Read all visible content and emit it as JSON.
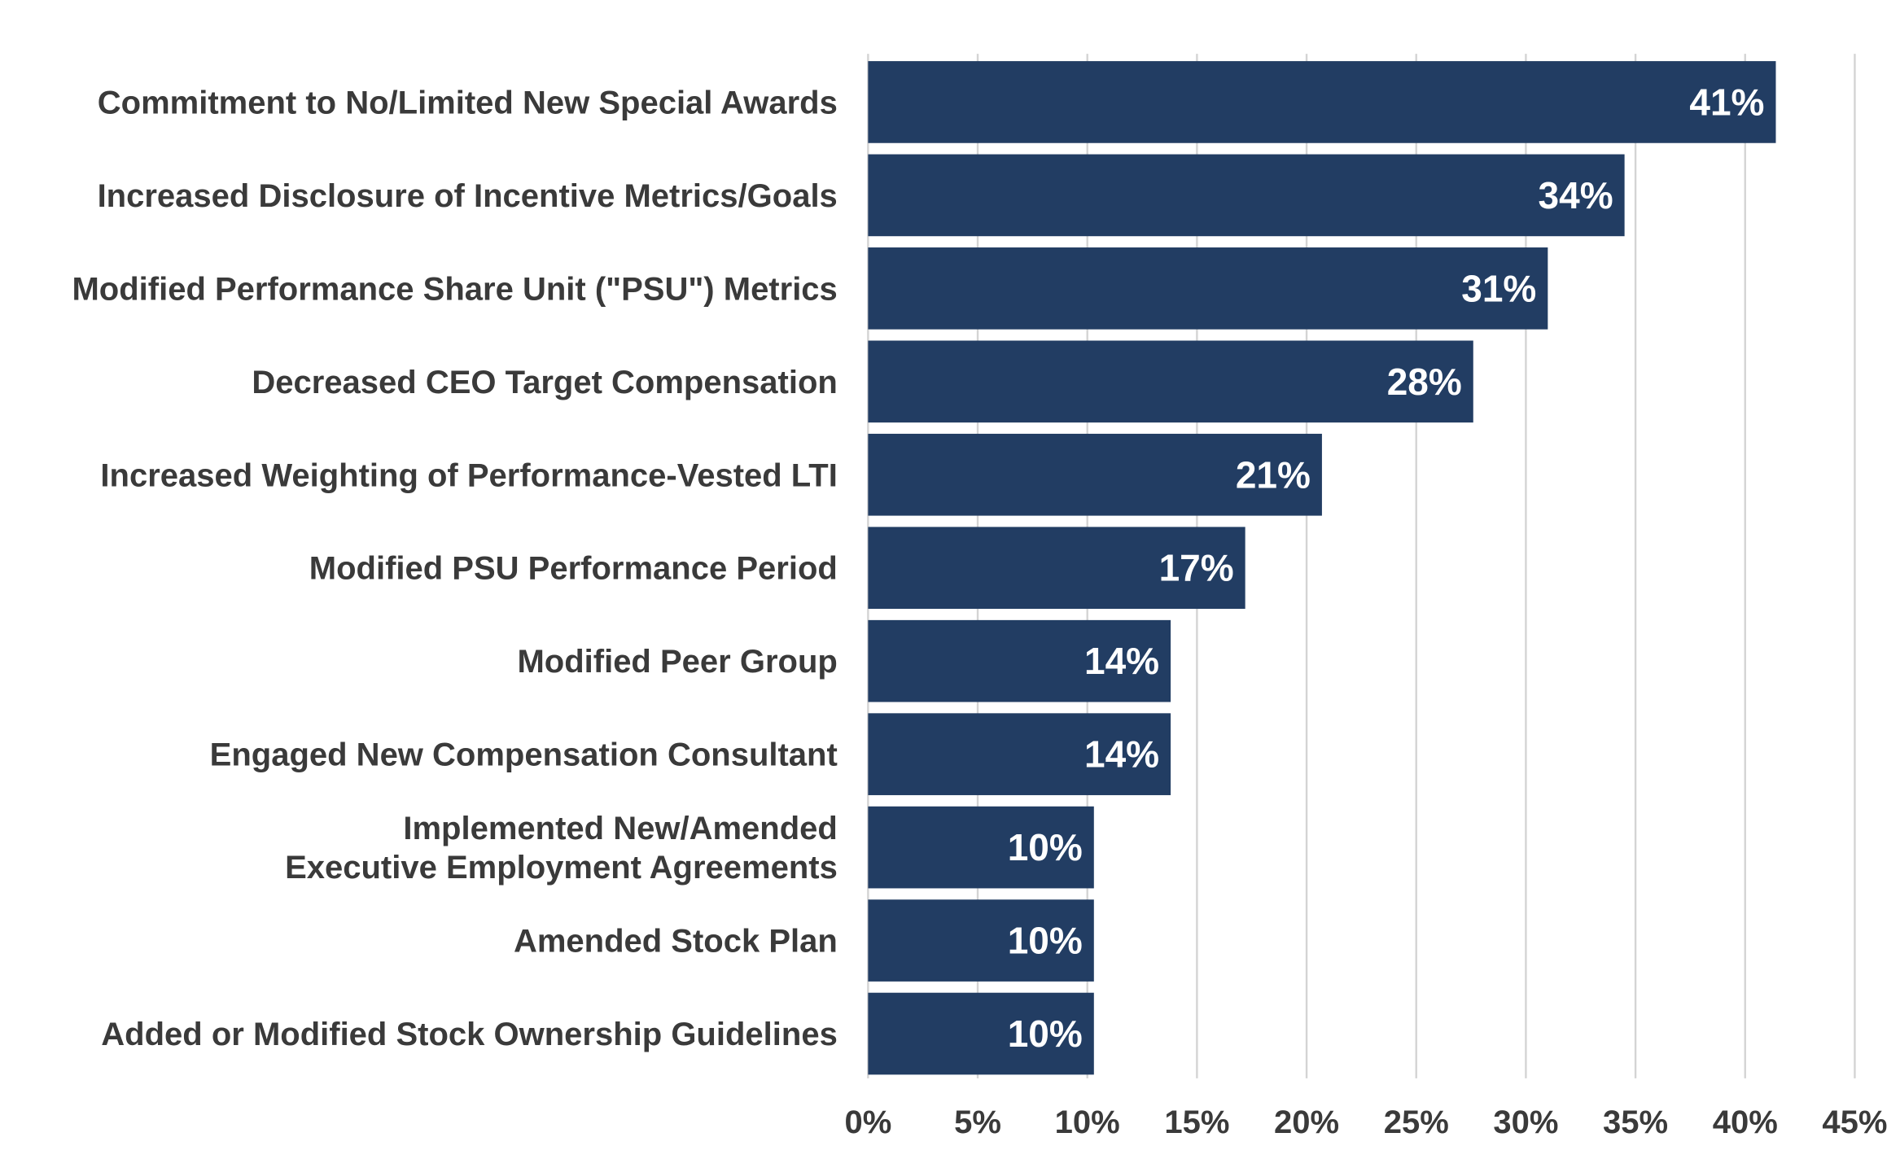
{
  "chart_data": {
    "type": "bar",
    "orientation": "horizontal",
    "title": "",
    "xlabel": "",
    "ylabel": "",
    "categories": [
      [
        "Commitment to No/Limited New Special Awards"
      ],
      [
        "Increased Disclosure of Incentive Metrics/Goals"
      ],
      [
        "Modified Performance Share Unit (\"PSU\") Metrics"
      ],
      [
        "Decreased CEO Target Compensation"
      ],
      [
        "Increased Weighting of Performance-Vested LTI"
      ],
      [
        "Modified PSU Performance Period"
      ],
      [
        "Modified Peer Group"
      ],
      [
        "Engaged New Compensation Consultant"
      ],
      [
        "Implemented New/Amended",
        "Executive Employment Agreements"
      ],
      [
        "Amended Stock Plan"
      ],
      [
        "Added or Modified Stock Ownership Guidelines"
      ]
    ],
    "values": [
      41.4,
      34.5,
      31.0,
      27.6,
      20.7,
      17.2,
      13.8,
      13.8,
      10.3,
      10.3,
      10.3
    ],
    "data_labels": [
      "41%",
      "34%",
      "31%",
      "28%",
      "21%",
      "17%",
      "14%",
      "14%",
      "10%",
      "10%",
      "10%"
    ],
    "xlim": [
      0,
      45
    ],
    "xticks": [
      0,
      5,
      10,
      15,
      20,
      25,
      30,
      35,
      40,
      45
    ],
    "xtick_labels": [
      "0%",
      "5%",
      "10%",
      "15%",
      "20%",
      "25%",
      "30%",
      "35%",
      "40%",
      "45%"
    ],
    "grid": "vertical",
    "legend": "none",
    "colors": {
      "bar": "#223D63",
      "bar_text": "#FFFFFF",
      "axis_text": "#3A3A3A",
      "grid": "#D4D4D4",
      "background": "#FFFFFF"
    }
  }
}
